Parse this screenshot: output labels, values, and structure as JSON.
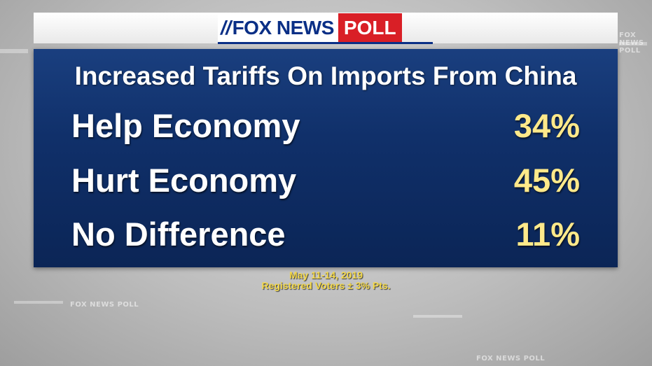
{
  "brand": {
    "fox_news": "FOX NEWS",
    "poll": "POLL",
    "colors": {
      "navy": "#0a2f86",
      "red": "#d91f26",
      "panel": "#10306a",
      "value_yellow": "#ffe98a",
      "footer_yellow": "#f3d84a"
    }
  },
  "chart_data": {
    "type": "table",
    "title": "Increased Tariffs On Imports From China",
    "rows": [
      {
        "label": "Help Economy",
        "value": 34,
        "display": "34%"
      },
      {
        "label": "Hurt Economy",
        "value": 45,
        "display": "45%"
      },
      {
        "label": "No Difference",
        "value": 11,
        "display": "11%"
      }
    ]
  },
  "footer": {
    "dates": "May 11-14, 2019",
    "sample": "Registered Voters ± 3% Pts."
  },
  "watermarks": [
    "FOX NEWS POLL",
    "FOX NEWS POLL",
    "FOX NEWS POLL"
  ]
}
